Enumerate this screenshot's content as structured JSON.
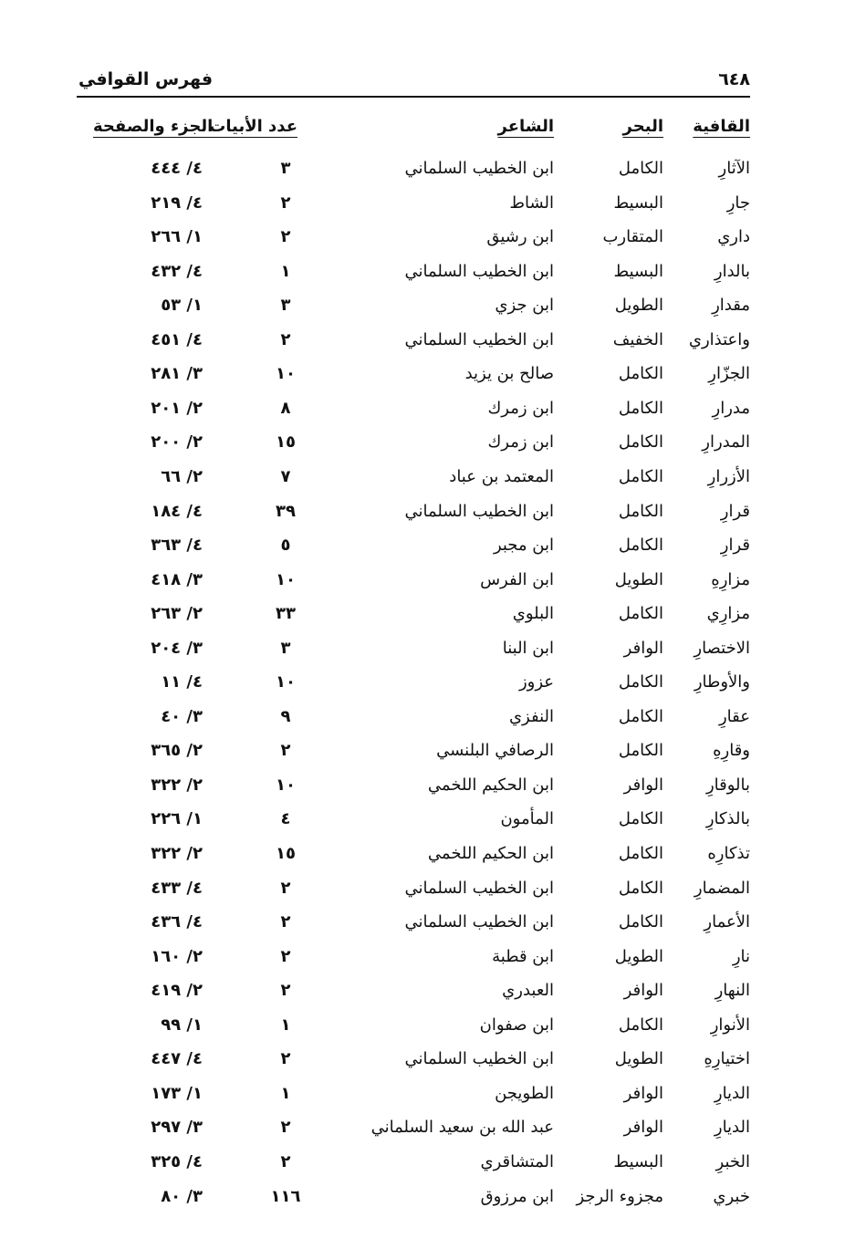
{
  "header": {
    "page_number": "٦٤٨",
    "title": "فهرس القوافي"
  },
  "columns": {
    "rhyme": "القافية",
    "meter": "البحر",
    "poet": "الشاعر",
    "verses": "عدد الأبيات",
    "ref": "الجزء والصفحة"
  },
  "rows": [
    {
      "rhyme": "الآثارِ",
      "meter": "الكامل",
      "poet": "ابن الخطيب السلماني",
      "verses": "٣",
      "ref": "٤٤٤ /٤"
    },
    {
      "rhyme": "جارِ",
      "meter": "البسيط",
      "poet": "الشاط",
      "verses": "٢",
      "ref": "٢١٩ /٤"
    },
    {
      "rhyme": "داري",
      "meter": "المتقارب",
      "poet": "ابن رشيق",
      "verses": "٢",
      "ref": "٢٦٦ /١"
    },
    {
      "rhyme": "بالدارِ",
      "meter": "البسيط",
      "poet": "ابن الخطيب السلماني",
      "verses": "١",
      "ref": "٤٣٢ /٤"
    },
    {
      "rhyme": "مقدارِ",
      "meter": "الطويل",
      "poet": "ابن جزي",
      "verses": "٣",
      "ref": "٥٣ /١"
    },
    {
      "rhyme": "واعتذاري",
      "meter": "الخفيف",
      "poet": "ابن الخطيب السلماني",
      "verses": "٢",
      "ref": "٤٥١ /٤"
    },
    {
      "rhyme": "الجزّارِ",
      "meter": "الكامل",
      "poet": "صالح بن يزيد",
      "verses": "١٠",
      "ref": "٢٨١ /٣"
    },
    {
      "rhyme": "مدرارِ",
      "meter": "الكامل",
      "poet": "ابن زمرك",
      "verses": "٨",
      "ref": "٢٠١ /٢"
    },
    {
      "rhyme": "المدرارِ",
      "meter": "الكامل",
      "poet": "ابن زمرك",
      "verses": "١٥",
      "ref": "٢٠٠ /٢"
    },
    {
      "rhyme": "الأزرارِ",
      "meter": "الكامل",
      "poet": "المعتمد بن عباد",
      "verses": "٧",
      "ref": "٦٦ /٢"
    },
    {
      "rhyme": "قرارِ",
      "meter": "الكامل",
      "poet": "ابن الخطيب السلماني",
      "verses": "٣٩",
      "ref": "١٨٤ /٤"
    },
    {
      "rhyme": "قرارِ",
      "meter": "الكامل",
      "poet": "ابن مجبر",
      "verses": "٥",
      "ref": "٣٦٣ /٤"
    },
    {
      "rhyme": "مزارِهِ",
      "meter": "الطويل",
      "poet": "ابن الفرس",
      "verses": "١٠",
      "ref": "٤١٨ /٣"
    },
    {
      "rhyme": "مزارِي",
      "meter": "الكامل",
      "poet": "البلوي",
      "verses": "٣٣",
      "ref": "٢٦٣ /٢"
    },
    {
      "rhyme": "الاختصارِ",
      "meter": "الوافر",
      "poet": "ابن البنا",
      "verses": "٣",
      "ref": "٢٠٤ /٣"
    },
    {
      "rhyme": "والأوطارِ",
      "meter": "الكامل",
      "poet": "عزوز",
      "verses": "١٠",
      "ref": "١١ /٤"
    },
    {
      "rhyme": "عقارِ",
      "meter": "الكامل",
      "poet": "النفزي",
      "verses": "٩",
      "ref": "٤٠ /٣"
    },
    {
      "rhyme": "وقارِهِ",
      "meter": "الكامل",
      "poet": "الرصافي البلنسي",
      "verses": "٢",
      "ref": "٣٦٥ /٢"
    },
    {
      "rhyme": "بالوقارِ",
      "meter": "الوافر",
      "poet": "ابن الحكيم اللخمي",
      "verses": "١٠",
      "ref": "٣٢٢ /٢"
    },
    {
      "rhyme": "بالذكارِ",
      "meter": "الكامل",
      "poet": "المأمون",
      "verses": "٤",
      "ref": "٢٢٦ /١"
    },
    {
      "rhyme": "تذكارِه",
      "meter": "الكامل",
      "poet": "ابن الحكيم اللخمي",
      "verses": "١٥",
      "ref": "٣٢٢ /٢"
    },
    {
      "rhyme": "المضمارِ",
      "meter": "الكامل",
      "poet": "ابن الخطيب السلماني",
      "verses": "٢",
      "ref": "٤٣٣ /٤"
    },
    {
      "rhyme": "الأعمارِ",
      "meter": "الكامل",
      "poet": "ابن الخطيب السلماني",
      "verses": "٢",
      "ref": "٤٣٦ /٤"
    },
    {
      "rhyme": "نارِ",
      "meter": "الطويل",
      "poet": "ابن قطبة",
      "verses": "٢",
      "ref": "١٦٠ /٢"
    },
    {
      "rhyme": "النهارِ",
      "meter": "الوافر",
      "poet": "العبدري",
      "verses": "٢",
      "ref": "٤١٩ /٢"
    },
    {
      "rhyme": "الأنوارِ",
      "meter": "الكامل",
      "poet": "ابن صفوان",
      "verses": "١",
      "ref": "٩٩ /١"
    },
    {
      "rhyme": "اختيارِهِ",
      "meter": "الطويل",
      "poet": "ابن الخطيب السلماني",
      "verses": "٢",
      "ref": "٤٤٧ /٤"
    },
    {
      "rhyme": "الديارِ",
      "meter": "الوافر",
      "poet": "الطويجن",
      "verses": "١",
      "ref": "١٧٣ /١"
    },
    {
      "rhyme": "الديارِ",
      "meter": "الوافر",
      "poet": "عبد الله بن سعيد السلماني",
      "verses": "٢",
      "ref": "٢٩٧ /٣"
    },
    {
      "rhyme": "الخبرِ",
      "meter": "البسيط",
      "poet": "المتشاقري",
      "verses": "٢",
      "ref": "٣٢٥ /٤"
    },
    {
      "rhyme": "خبري",
      "meter": "مجزوء الرجز",
      "poet": "ابن مرزوق",
      "verses": "١١٦",
      "ref": "٨٠ /٣"
    }
  ]
}
